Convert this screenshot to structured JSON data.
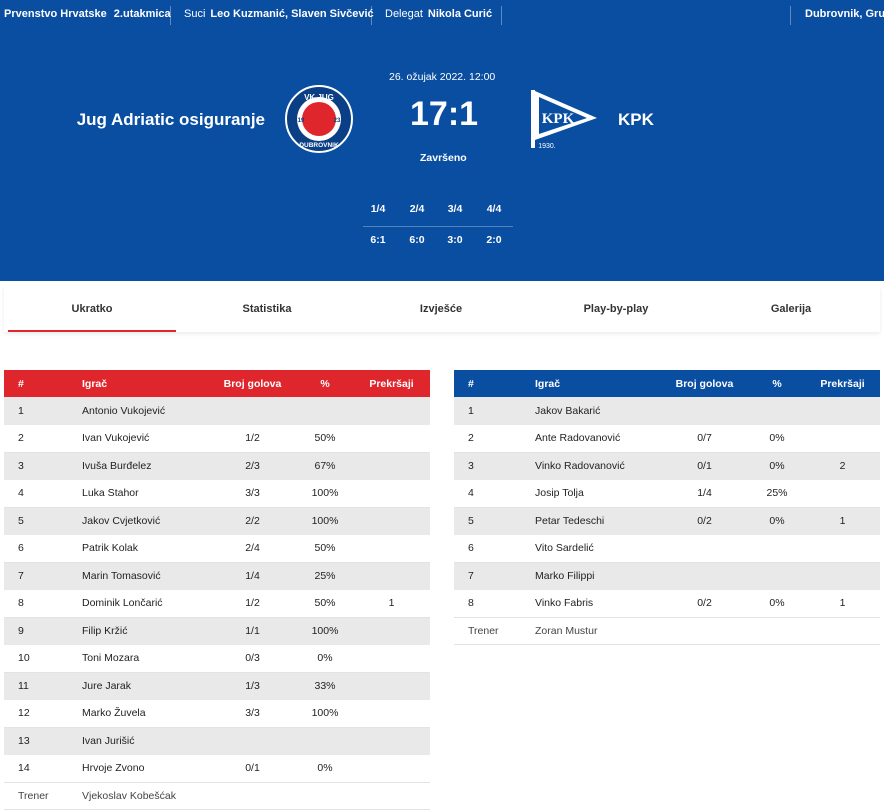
{
  "topbar": {
    "competition": "Prvenstvo Hrvatske",
    "round": "2.utakmica",
    "referees_label": "Suci",
    "referees": "Leo Kuzmanić, Slaven Sivčević",
    "delegate_label": "Delegat",
    "delegate": "Nikola Curić",
    "venue": "Dubrovnik, Gruž"
  },
  "match": {
    "home_team": "Jug Adriatic osiguranje",
    "away_team": "KPK",
    "date": "26. ožujak 2022. 12:00",
    "score": "17:1",
    "status": "Završeno",
    "home_logo_text": {
      "top": "VK JUG",
      "left": "19",
      "right": "23",
      "bottom": "DUBROVNIK"
    },
    "away_logo_text": {
      "main": "KPK",
      "year": "1930."
    },
    "quarters": [
      {
        "label": "1/4",
        "score": "6:1"
      },
      {
        "label": "2/4",
        "score": "6:0"
      },
      {
        "label": "3/4",
        "score": "3:0"
      },
      {
        "label": "4/4",
        "score": "2:0"
      }
    ]
  },
  "tabs": [
    "Ukratko",
    "Statistika",
    "Izvješće",
    "Play-by-play",
    "Galerija"
  ],
  "colors": {
    "primary_blue": "#0a4ea1",
    "home_red": "#e0262d",
    "stripe_gray": "#e9e9e9"
  },
  "columns": [
    "#",
    "Igrač",
    "Broj golova",
    "%",
    "Prekršaji"
  ],
  "home_players": [
    [
      "1",
      "Antonio Vukojević",
      "",
      "",
      ""
    ],
    [
      "2",
      "Ivan Vukojević",
      "1/2",
      "50%",
      ""
    ],
    [
      "3",
      "Ivuša Burđelez",
      "2/3",
      "67%",
      ""
    ],
    [
      "4",
      "Luka Stahor",
      "3/3",
      "100%",
      ""
    ],
    [
      "5",
      "Jakov Cvjetković",
      "2/2",
      "100%",
      ""
    ],
    [
      "6",
      "Patrik Kolak",
      "2/4",
      "50%",
      ""
    ],
    [
      "7",
      "Marin Tomasović",
      "1/4",
      "25%",
      ""
    ],
    [
      "8",
      "Dominik Lončarić",
      "1/2",
      "50%",
      "1"
    ],
    [
      "9",
      "Filip Kržić",
      "1/1",
      "100%",
      ""
    ],
    [
      "10",
      "Toni Mozara",
      "0/3",
      "0%",
      ""
    ],
    [
      "11",
      "Jure Jarak",
      "1/3",
      "33%",
      ""
    ],
    [
      "12",
      "Marko Žuvela",
      "3/3",
      "100%",
      ""
    ],
    [
      "13",
      "Ivan Jurišić",
      "",
      "",
      ""
    ],
    [
      "14",
      "Hrvoje Zvono",
      "0/1",
      "0%",
      ""
    ]
  ],
  "home_coach": {
    "label": "Trener",
    "name": "Vjekoslav Kobešćak"
  },
  "away_players": [
    [
      "1",
      "Jakov Bakarić",
      "",
      "",
      ""
    ],
    [
      "2",
      "Ante Radovanović",
      "0/7",
      "0%",
      ""
    ],
    [
      "3",
      "Vinko Radovanović",
      "0/1",
      "0%",
      "2"
    ],
    [
      "4",
      "Josip Tolja",
      "1/4",
      "25%",
      ""
    ],
    [
      "5",
      "Petar Tedeschi",
      "0/2",
      "0%",
      "1"
    ],
    [
      "6",
      "Vito Sardelić",
      "",
      "",
      ""
    ],
    [
      "7",
      "Marko Filippi",
      "",
      "",
      ""
    ],
    [
      "8",
      "Vinko Fabris",
      "0/2",
      "0%",
      "1"
    ]
  ],
  "away_coach": {
    "label": "Trener",
    "name": "Zoran Mustur"
  }
}
